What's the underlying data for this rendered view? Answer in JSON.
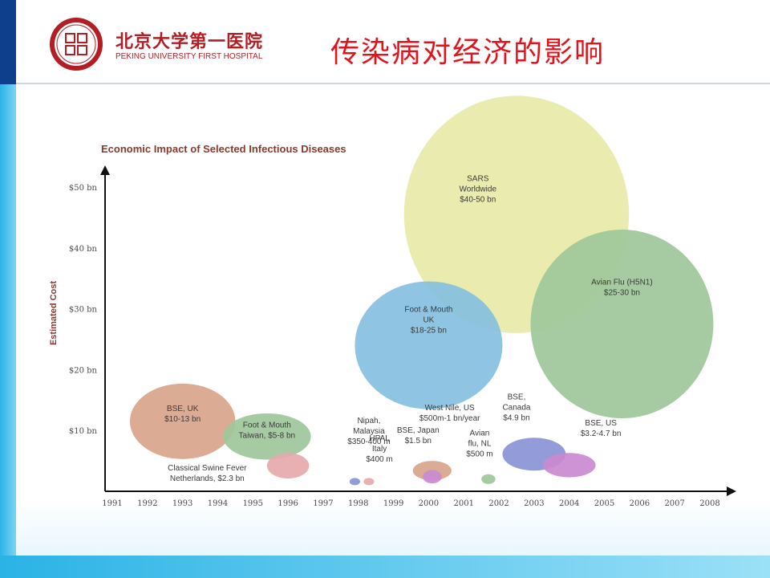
{
  "header": {
    "logo_cn": "北京大学第一医院",
    "logo_en": "PEKING UNIVERSITY FIRST HOSPITAL",
    "title": "传染病对经济的影响"
  },
  "colors": {
    "title_red": "#e3121b",
    "brand_red": "#b21e24",
    "accent_blue": "#2bb3e6"
  },
  "chart_data": {
    "type": "bubble",
    "title": "Economic Impact of Selected Infectious Diseases",
    "xlabel": "",
    "ylabel": "Estimated Cost",
    "x_ticks": [
      "1991",
      "1992",
      "1993",
      "1994",
      "1995",
      "1996",
      "1997",
      "1998",
      "1999",
      "2000",
      "2001",
      "2002",
      "2003",
      "2004",
      "2005",
      "2006",
      "2007",
      "2008"
    ],
    "y_ticks": [
      "$10 bn",
      "$20 bn",
      "$30 bn",
      "$40 bn",
      "$50 bn"
    ],
    "y_tick_values": [
      10,
      20,
      30,
      40,
      50
    ],
    "xlim": [
      1991,
      2008
    ],
    "ylim": [
      0,
      52
    ],
    "bubbles": [
      {
        "lines": [
          "SARS",
          "Worldwide",
          "$40-50 bn"
        ],
        "year": 2002.5,
        "center_bn": 45.5,
        "rx_years": 3.2,
        "ry_bn": 19.5,
        "color": "#e8eaa8",
        "label_year": 2001.4,
        "label_bn": 51
      },
      {
        "lines": [
          "Avian Flu (H5N1)",
          "$25-30 bn"
        ],
        "year": 2005.5,
        "center_bn": 27.5,
        "rx_years": 2.6,
        "ry_bn": 15.5,
        "color": "#9ec79a",
        "label_year": 2005.5,
        "label_bn": 34
      },
      {
        "lines": [
          "Foot & Mouth",
          "UK",
          "$18-25 bn"
        ],
        "year": 2000.0,
        "center_bn": 24.0,
        "rx_years": 2.1,
        "ry_bn": 10.5,
        "color": "#86bfdf",
        "label_year": 2000.0,
        "label_bn": 29.5
      },
      {
        "lines": [
          "BSE, UK",
          "$10-13 bn"
        ],
        "year": 1993.0,
        "center_bn": 11.5,
        "rx_years": 1.5,
        "ry_bn": 6.2,
        "color": "#d9a48a",
        "label_year": 1993.0,
        "label_bn": 13.2
      },
      {
        "lines": [
          "Foot & Mouth",
          "Taiwan, $5-8 bn"
        ],
        "year": 1995.4,
        "center_bn": 9.0,
        "rx_years": 1.25,
        "ry_bn": 3.8,
        "color": "#9ec79a",
        "label_year": 1995.4,
        "label_bn": 10.5
      },
      {
        "lines": [
          "Classical Swine Fever",
          "Netherlands, $2.3 bn"
        ],
        "year": 1996.0,
        "center_bn": 4.2,
        "rx_years": 0.6,
        "ry_bn": 2.1,
        "color": "#e6a9ac",
        "label_year": 1993.7,
        "label_bn": 3.4
      },
      {
        "lines": [
          "Nipah,",
          "Malaysia",
          "$350-400 m"
        ],
        "year": 1997.9,
        "center_bn": 1.6,
        "rx_years": 0.15,
        "ry_bn": 0.6,
        "color": "#8a93d6",
        "label_year": 1998.3,
        "label_bn": 11.2
      },
      {
        "lines": [
          "HPAI,",
          "Italy",
          "$400 m"
        ],
        "year": 1998.3,
        "center_bn": 1.6,
        "rx_years": 0.15,
        "ry_bn": 0.6,
        "color": "#e6a9ac",
        "label_year": 1998.6,
        "label_bn": 8.3
      },
      {
        "lines": [
          "BSE, Japan",
          "$1.5 bn"
        ],
        "year": 2000.1,
        "center_bn": 3.4,
        "rx_years": 0.55,
        "ry_bn": 1.6,
        "color": "#d9a48a",
        "label_year": 1999.7,
        "label_bn": 9.6
      },
      {
        "lines": [
          "West Nile, US",
          "$500m-1 bn/year"
        ],
        "year": 2000.1,
        "center_bn": 2.4,
        "rx_years": 0.27,
        "ry_bn": 1.1,
        "color": "#c98ad0",
        "label_year": 2000.6,
        "label_bn": 13.3
      },
      {
        "lines": [
          "Avian",
          "flu, NL",
          "$500 m"
        ],
        "year": 2001.7,
        "center_bn": 2.0,
        "rx_years": 0.2,
        "ry_bn": 0.8,
        "color": "#9ec79a",
        "label_year": 2001.45,
        "label_bn": 9.2
      },
      {
        "lines": [
          "BSE,",
          "Canada",
          "$4.9 bn"
        ],
        "year": 2003.0,
        "center_bn": 6.1,
        "rx_years": 0.9,
        "ry_bn": 2.7,
        "color": "#8a93d6",
        "label_year": 2002.5,
        "label_bn": 15.1
      },
      {
        "lines": [
          "BSE, US",
          "$3.2-4.7 bn"
        ],
        "year": 2004.0,
        "center_bn": 4.3,
        "rx_years": 0.75,
        "ry_bn": 2.0,
        "color": "#c98ad0",
        "label_year": 2004.9,
        "label_bn": 10.8
      }
    ]
  }
}
